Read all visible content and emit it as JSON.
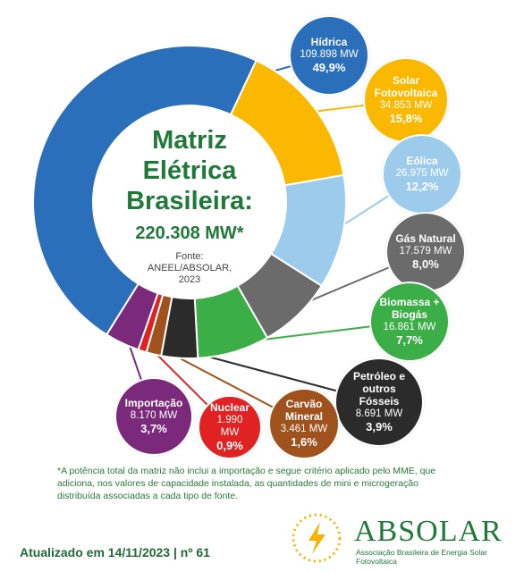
{
  "chart_data": {
    "type": "pie",
    "title": "Matriz Elétrica Brasileira:",
    "total": "220.308 MW*",
    "source": "Fonte: ANEEL/ABSOLAR, 2023",
    "categories": [
      "Hídrica",
      "Solar Fotovoltaica",
      "Eólica",
      "Gás Natural",
      "Biomassa + Biogás",
      "Petróleo e outros Fósseis",
      "Carvão Mineral",
      "Nuclear",
      "Importação"
    ],
    "values": [
      49.9,
      15.8,
      12.2,
      8.0,
      7.7,
      3.9,
      1.6,
      0.9,
      3.7
    ],
    "value_labels": [
      "49,9%",
      "15,8%",
      "12,2%",
      "8,0%",
      "7,7%",
      "3,9%",
      "1,6%",
      "0,9%",
      "3,7%"
    ],
    "capacity": [
      "109.898 MW",
      "34.853 MW",
      "26.975 MW",
      "17.579 MW",
      "16.861 MW",
      "8.691 MW",
      "3.461 MW",
      "1.990 MW",
      "8.170 MW"
    ],
    "colors": [
      "#2b6fba",
      "#fbb800",
      "#9ccbec",
      "#6b6b6b",
      "#3cae48",
      "#2b2b2b",
      "#a0521c",
      "#e02222",
      "#7b2a7b"
    ]
  },
  "footnote": "*A potência total da matriz não inclui a importação e segue critério aplicado pelo MME, que adiciona, nos valores de capacidade instalada, as quantidades de mini e microgeração distribuída associadas a cada tipo de fonte.",
  "updated": "Atualizado em 14/11/2023 | nº 61",
  "logo": {
    "name": "ABSOLAR",
    "subtitle": "Associação Brasileira de Energia Solar Fotovoltaica"
  }
}
